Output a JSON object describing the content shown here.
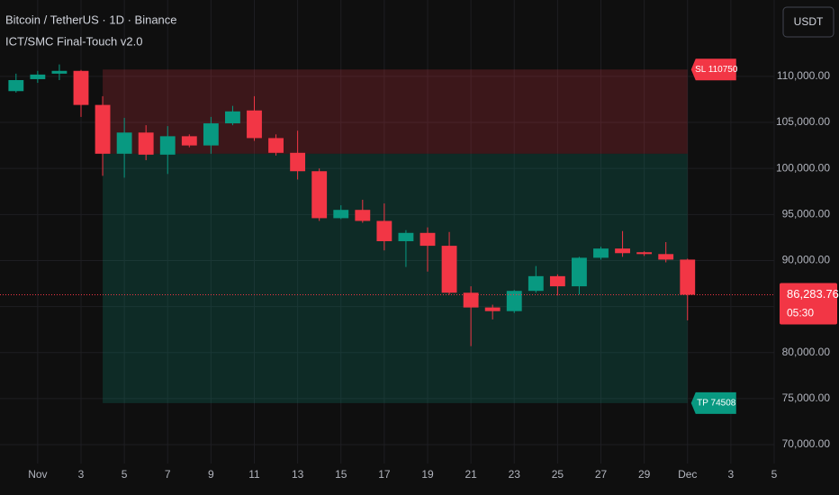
{
  "header": {
    "symbol": "Bitcoin / TetherUS · 1D · Binance",
    "indicator": "ICT/SMC Final-Touch v2.0",
    "currency_button": "USDT"
  },
  "chart_data": {
    "type": "candlestick",
    "x": [
      0,
      1,
      2,
      3,
      4,
      5,
      6,
      7,
      8,
      9,
      10,
      11,
      12,
      13,
      14,
      15,
      16,
      17,
      18,
      19,
      20,
      21,
      22,
      23,
      24,
      25,
      26,
      27,
      28,
      29,
      30,
      31
    ],
    "open": [
      108400,
      109700,
      110300,
      110600,
      106900,
      101600,
      103900,
      101500,
      103500,
      102500,
      104900,
      106300,
      103300,
      101700,
      99700,
      94600,
      95500,
      94300,
      92100,
      93000,
      91600,
      86500,
      84900,
      84500,
      86700,
      88300,
      87200,
      90300,
      91300,
      90900,
      90700,
      90100
    ],
    "high": [
      110300,
      110600,
      111300,
      110700,
      107850,
      105500,
      104700,
      104600,
      103700,
      105600,
      106800,
      107850,
      103700,
      104100,
      100000,
      96000,
      96600,
      96200,
      93300,
      93600,
      93100,
      87200,
      85200,
      86800,
      89400,
      88500,
      90400,
      91500,
      93200,
      91000,
      92000,
      90200
    ],
    "low": [
      108240,
      109300,
      109600,
      105600,
      99200,
      99000,
      100900,
      99400,
      102300,
      101600,
      104700,
      103000,
      101400,
      98800,
      94300,
      94500,
      94100,
      91100,
      89300,
      88800,
      86300,
      80700,
      83600,
      84300,
      86500,
      86200,
      86300,
      90100,
      90400,
      90500,
      89800,
      83500
    ],
    "close": [
      109600,
      110200,
      110600,
      106900,
      101600,
      103900,
      101500,
      103500,
      102500,
      104900,
      106200,
      103300,
      101700,
      99700,
      94600,
      95500,
      94300,
      92100,
      93000,
      91600,
      86500,
      84900,
      84500,
      86700,
      88300,
      87200,
      90300,
      91300,
      90800,
      90700,
      90100,
      86283.76
    ],
    "up_color": "#089981",
    "down_color": "#f23645",
    "xlim": [
      -0.74,
      35
    ],
    "ylim": [
      67950,
      118300
    ],
    "xticks": [
      {
        "value": 1,
        "label": "Nov"
      },
      3,
      5,
      7,
      9,
      11,
      13,
      15,
      17,
      19,
      21,
      23,
      25,
      27,
      29,
      {
        "value": 31,
        "label": "Dec"
      },
      {
        "value": 33,
        "label": "3"
      },
      {
        "value": 35,
        "label": "5"
      }
    ],
    "yticks": [
      {
        "value": 70000,
        "label": "70,000.00"
      },
      {
        "value": 75000,
        "label": "75,000.00"
      },
      {
        "value": 80000,
        "label": "80,000.00"
      },
      {
        "value": 85000,
        "label": "85,000.00"
      },
      {
        "value": 90000,
        "label": "90,000.00"
      },
      {
        "value": 95000,
        "label": "95,000.00"
      },
      {
        "value": 100000,
        "label": "100,000.00"
      },
      {
        "value": 105000,
        "label": "105,000.00"
      },
      {
        "value": 110000,
        "label": "110,000.00"
      }
    ],
    "grid": true,
    "position": {
      "start_x": 4,
      "end_x": 31,
      "entry": 101600,
      "stop": {
        "value": 110750,
        "label": "SL 110750"
      },
      "target": {
        "value": 74508,
        "label": "TP 74508"
      },
      "stop_color": "#f23645",
      "target_color": "#089981"
    },
    "last_price": {
      "value": 86283.76,
      "label": "86,283.76"
    },
    "countdown": "05:30"
  }
}
